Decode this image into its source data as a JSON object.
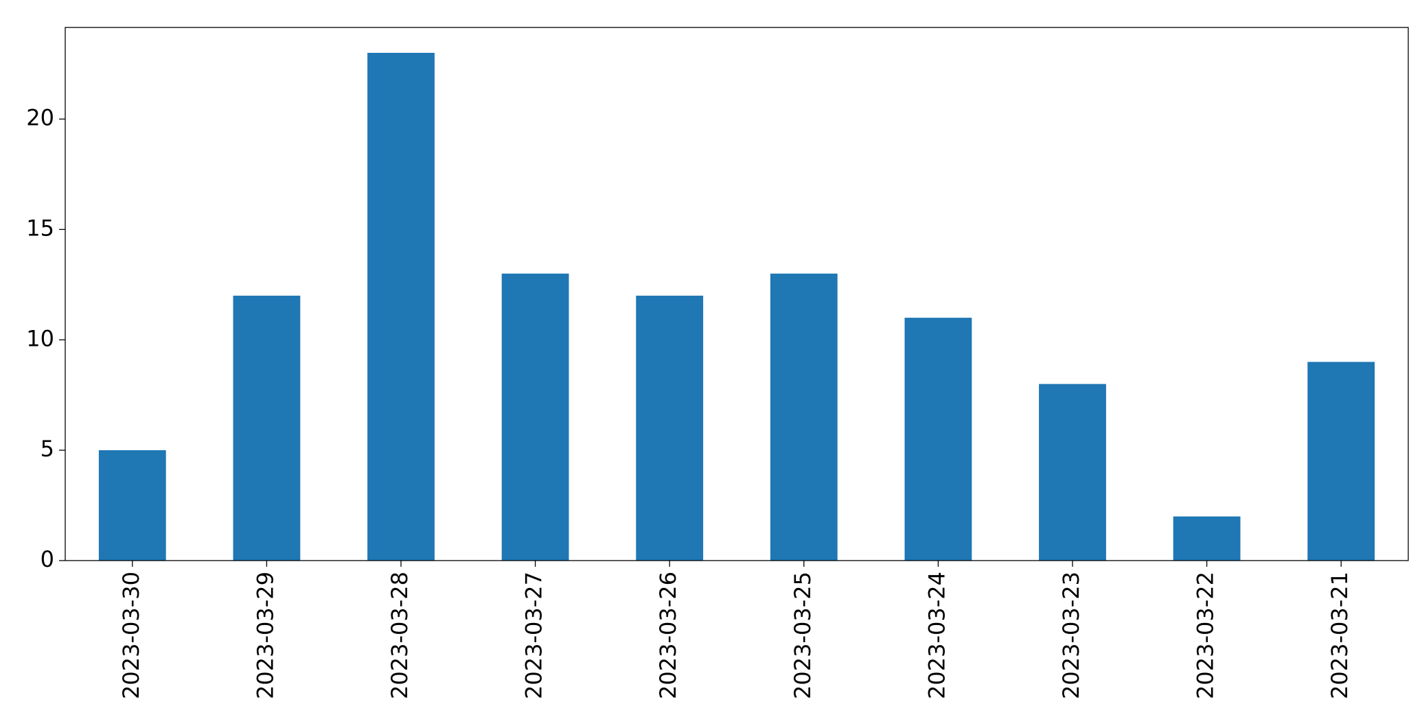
{
  "chart_data": {
    "type": "bar",
    "categories": [
      "2023-03-30",
      "2023-03-29",
      "2023-03-28",
      "2023-03-27",
      "2023-03-26",
      "2023-03-25",
      "2023-03-24",
      "2023-03-23",
      "2023-03-22",
      "2023-03-21"
    ],
    "values": [
      5,
      12,
      23,
      13,
      12,
      13,
      11,
      8,
      2,
      9
    ],
    "color": "#1f77b4",
    "ylim": [
      0,
      24.15
    ],
    "yticks": [
      0,
      5,
      10,
      15,
      20
    ],
    "grid": false
  }
}
